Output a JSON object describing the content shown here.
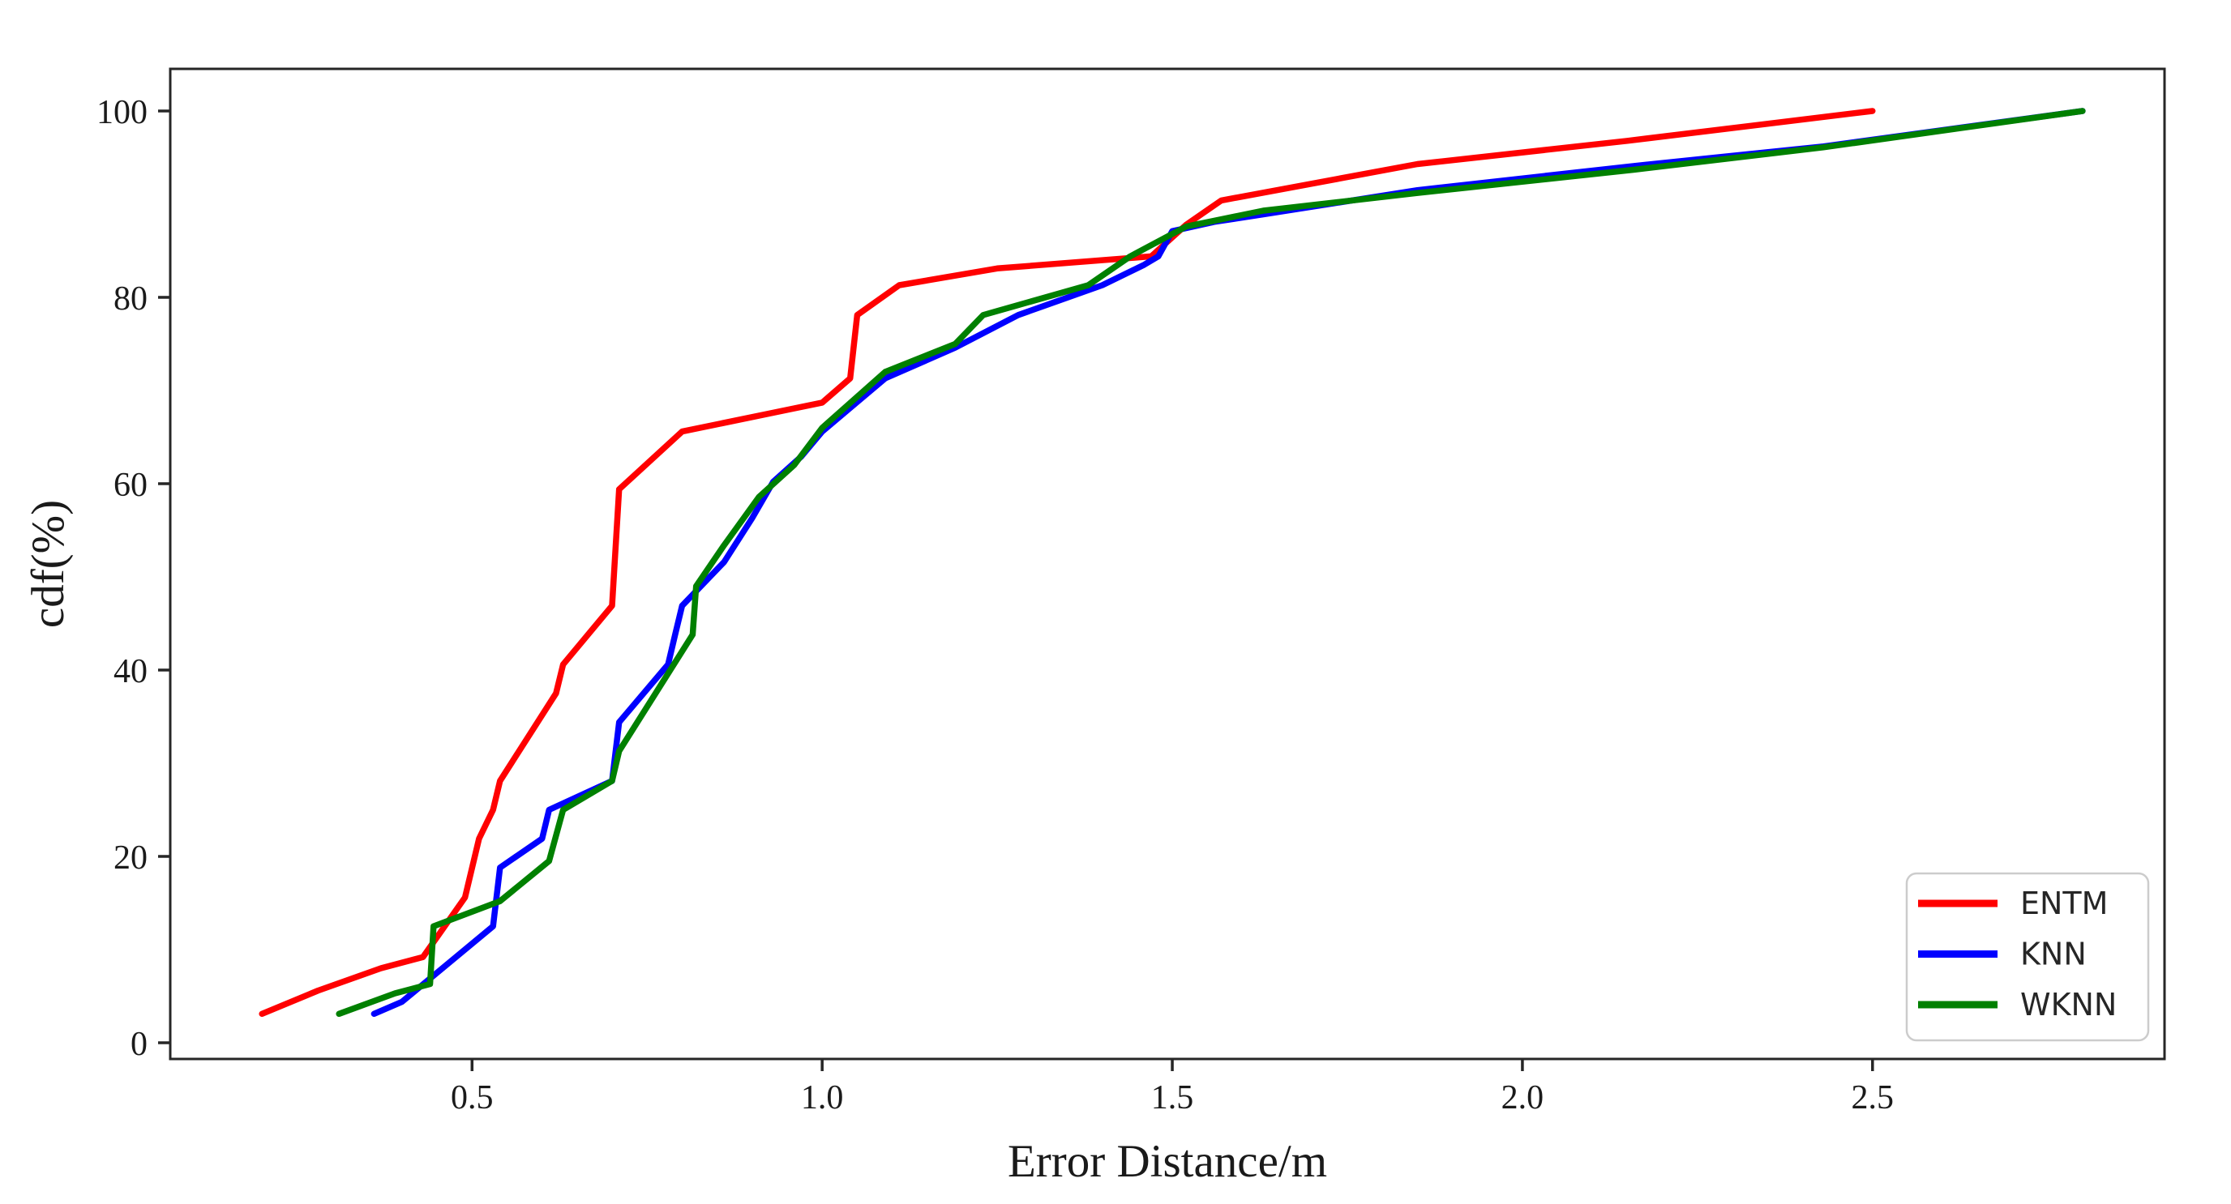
{
  "figure": {
    "background": "#ffffff",
    "axis_color": "#262626",
    "text_color": "#1a1a1a"
  },
  "chart_data": {
    "type": "line",
    "title": "",
    "xlabel": "Error Distance/m",
    "ylabel": "cdf(%)",
    "xlim": [
      0.069,
      2.917
    ],
    "ylim": [
      -1.74,
      104.52
    ],
    "x_ticks": [
      0.5,
      1.0,
      1.5,
      2.0,
      2.5
    ],
    "x_tick_labels": [
      "0.5",
      "1.0",
      "1.5",
      "2.0",
      "2.5"
    ],
    "y_ticks": [
      0,
      20,
      40,
      60,
      80,
      100
    ],
    "y_tick_labels": [
      "0",
      "20",
      "40",
      "60",
      "80",
      "100"
    ],
    "grid": false,
    "legend": {
      "position": "lower right",
      "entries": [
        "ENTM",
        "KNN",
        "WKNN"
      ]
    },
    "series": [
      {
        "name": "ENTM",
        "color": "#ff0000",
        "points": [
          [
            0.2,
            3.1
          ],
          [
            0.28,
            5.6
          ],
          [
            0.37,
            8.0
          ],
          [
            0.43,
            9.2
          ],
          [
            0.49,
            15.6
          ],
          [
            0.51,
            21.9
          ],
          [
            0.53,
            25.0
          ],
          [
            0.54,
            28.1
          ],
          [
            0.62,
            37.5
          ],
          [
            0.63,
            40.6
          ],
          [
            0.7,
            46.9
          ],
          [
            0.71,
            59.4
          ],
          [
            0.8,
            65.6
          ],
          [
            1.0,
            68.7
          ],
          [
            1.04,
            71.3
          ],
          [
            1.05,
            78.1
          ],
          [
            1.11,
            81.3
          ],
          [
            1.25,
            83.1
          ],
          [
            1.47,
            84.4
          ],
          [
            1.52,
            87.8
          ],
          [
            1.57,
            90.4
          ],
          [
            1.85,
            94.3
          ],
          [
            2.15,
            96.8
          ],
          [
            2.5,
            100.0
          ]
        ]
      },
      {
        "name": "KNN",
        "color": "#0000ff",
        "points": [
          [
            0.36,
            3.1
          ],
          [
            0.4,
            4.4
          ],
          [
            0.53,
            12.5
          ],
          [
            0.54,
            18.8
          ],
          [
            0.6,
            21.9
          ],
          [
            0.61,
            25.0
          ],
          [
            0.7,
            28.1
          ],
          [
            0.71,
            34.4
          ],
          [
            0.78,
            40.6
          ],
          [
            0.79,
            43.8
          ],
          [
            0.8,
            46.9
          ],
          [
            0.86,
            51.6
          ],
          [
            0.9,
            56.3
          ],
          [
            0.93,
            60.2
          ],
          [
            0.97,
            62.9
          ],
          [
            1.0,
            65.6
          ],
          [
            1.09,
            71.3
          ],
          [
            1.19,
            74.6
          ],
          [
            1.28,
            78.1
          ],
          [
            1.4,
            81.3
          ],
          [
            1.46,
            83.5
          ],
          [
            1.48,
            84.4
          ],
          [
            1.5,
            87.1
          ],
          [
            1.56,
            88.1
          ],
          [
            1.63,
            88.9
          ],
          [
            1.85,
            91.5
          ],
          [
            2.16,
            94.1
          ],
          [
            2.43,
            96.2
          ],
          [
            2.8,
            100.0
          ]
        ]
      },
      {
        "name": "WKNN",
        "color": "#008000",
        "points": [
          [
            0.31,
            3.1
          ],
          [
            0.39,
            5.3
          ],
          [
            0.44,
            6.3
          ],
          [
            0.445,
            12.5
          ],
          [
            0.54,
            15.2
          ],
          [
            0.61,
            19.5
          ],
          [
            0.63,
            25.0
          ],
          [
            0.7,
            28.1
          ],
          [
            0.71,
            31.3
          ],
          [
            0.815,
            43.8
          ],
          [
            0.82,
            49.0
          ],
          [
            0.86,
            53.4
          ],
          [
            0.91,
            58.6
          ],
          [
            0.96,
            62.0
          ],
          [
            1.0,
            66.0
          ],
          [
            1.09,
            72.0
          ],
          [
            1.19,
            75.0
          ],
          [
            1.23,
            78.1
          ],
          [
            1.38,
            81.3
          ],
          [
            1.44,
            84.4
          ],
          [
            1.47,
            85.6
          ],
          [
            1.52,
            87.6
          ],
          [
            1.63,
            89.3
          ],
          [
            1.85,
            91.2
          ],
          [
            2.16,
            93.7
          ],
          [
            2.43,
            96.1
          ],
          [
            2.8,
            100.0
          ]
        ]
      }
    ]
  }
}
